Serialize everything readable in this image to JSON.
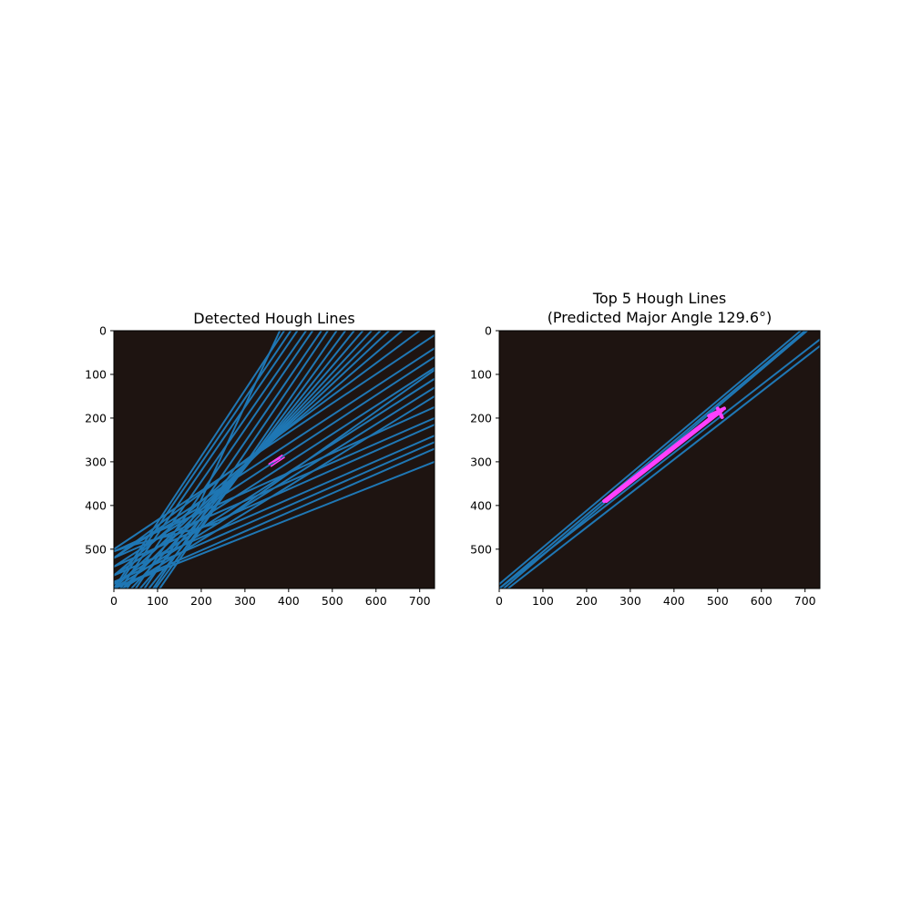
{
  "background_color": "#ffffff",
  "chart_data": [
    {
      "type": "line",
      "title": "Detected Hough Lines",
      "subtitle": "",
      "xlabel": "",
      "ylabel": "",
      "xlim": [
        0,
        734
      ],
      "ylim": [
        590,
        0
      ],
      "y_inverted": true,
      "grid": false,
      "xticks": [
        0,
        100,
        200,
        300,
        400,
        500,
        600,
        700
      ],
      "yticks": [
        0,
        100,
        200,
        300,
        400,
        500
      ],
      "image_background_color": "#1e1411",
      "line_color": "#1f77b4",
      "marker_color": "#ff40ff",
      "lines": [
        [
          [
            0,
            590
          ],
          [
            390,
            0
          ]
        ],
        [
          [
            5,
            590
          ],
          [
            405,
            0
          ]
        ],
        [
          [
            15,
            590
          ],
          [
            420,
            0
          ]
        ],
        [
          [
            30,
            590
          ],
          [
            440,
            0
          ]
        ],
        [
          [
            50,
            590
          ],
          [
            455,
            0
          ]
        ],
        [
          [
            70,
            590
          ],
          [
            475,
            0
          ]
        ],
        [
          [
            90,
            590
          ],
          [
            490,
            0
          ]
        ],
        [
          [
            105,
            590
          ],
          [
            510,
            0
          ]
        ],
        [
          [
            95,
            590
          ],
          [
            530,
            0
          ]
        ],
        [
          [
            80,
            590
          ],
          [
            550,
            0
          ]
        ],
        [
          [
            60,
            590
          ],
          [
            570,
            0
          ]
        ],
        [
          [
            40,
            590
          ],
          [
            590,
            0
          ]
        ],
        [
          [
            20,
            590
          ],
          [
            610,
            0
          ]
        ],
        [
          [
            0,
            590
          ],
          [
            630,
            0
          ]
        ],
        [
          [
            0,
            560
          ],
          [
            660,
            0
          ]
        ],
        [
          [
            0,
            520
          ],
          [
            700,
            0
          ]
        ],
        [
          [
            0,
            500
          ],
          [
            734,
            10
          ]
        ],
        [
          [
            0,
            520
          ],
          [
            734,
            40
          ]
        ],
        [
          [
            0,
            540
          ],
          [
            734,
            60
          ]
        ],
        [
          [
            0,
            560
          ],
          [
            734,
            85
          ]
        ],
        [
          [
            0,
            580
          ],
          [
            734,
            110
          ]
        ],
        [
          [
            0,
            590
          ],
          [
            734,
            130
          ]
        ],
        [
          [
            20,
            590
          ],
          [
            734,
            150
          ]
        ],
        [
          [
            0,
            505
          ],
          [
            734,
            175
          ]
        ],
        [
          [
            0,
            520
          ],
          [
            734,
            200
          ]
        ],
        [
          [
            0,
            540
          ],
          [
            734,
            215
          ]
        ],
        [
          [
            0,
            560
          ],
          [
            734,
            240
          ]
        ],
        [
          [
            0,
            575
          ],
          [
            734,
            255
          ]
        ],
        [
          [
            0,
            590
          ],
          [
            734,
            270
          ]
        ],
        [
          [
            0,
            590
          ],
          [
            734,
            300
          ]
        ],
        [
          [
            0,
            505
          ],
          [
            45,
            490
          ]
        ],
        [
          [
            45,
            490
          ],
          [
            190,
            408
          ]
        ],
        [
          [
            190,
            408
          ],
          [
            380,
            0
          ]
        ],
        [
          [
            45,
            490
          ],
          [
            240,
            440
          ]
        ],
        [
          [
            240,
            440
          ],
          [
            734,
            90
          ]
        ]
      ],
      "markers": [
        [
          [
            355,
            305
          ],
          [
            385,
            285
          ]
        ],
        [
          [
            360,
            310
          ],
          [
            390,
            290
          ]
        ],
        [
          [
            365,
            300
          ],
          [
            380,
            292
          ]
        ]
      ]
    },
    {
      "type": "line",
      "title": "Top 5 Hough Lines",
      "subtitle": "(Predicted Major Angle 129.6°)",
      "xlabel": "",
      "ylabel": "",
      "xlim": [
        0,
        734
      ],
      "ylim": [
        590,
        0
      ],
      "y_inverted": true,
      "grid": false,
      "xticks": [
        0,
        100,
        200,
        300,
        400,
        500,
        600,
        700
      ],
      "yticks": [
        0,
        100,
        200,
        300,
        400,
        500
      ],
      "image_background_color": "#1e1411",
      "line_color": "#1f77b4",
      "marker_color": "#ff40ff",
      "lines": [
        [
          [
            0,
            580
          ],
          [
            690,
            0
          ]
        ],
        [
          [
            0,
            590
          ],
          [
            700,
            0
          ]
        ],
        [
          [
            10,
            590
          ],
          [
            705,
            0
          ]
        ],
        [
          [
            0,
            590
          ],
          [
            734,
            20
          ]
        ],
        [
          [
            20,
            590
          ],
          [
            734,
            35
          ]
        ]
      ],
      "markers": [
        [
          [
            240,
            390
          ],
          [
            490,
            195
          ]
        ],
        [
          [
            245,
            390
          ],
          [
            500,
            190
          ]
        ],
        [
          [
            250,
            385
          ],
          [
            505,
            185
          ]
        ],
        [
          [
            255,
            380
          ],
          [
            510,
            182
          ]
        ],
        [
          [
            480,
            195
          ],
          [
            515,
            178
          ]
        ],
        [
          [
            500,
            178
          ],
          [
            510,
            198
          ]
        ]
      ]
    }
  ]
}
